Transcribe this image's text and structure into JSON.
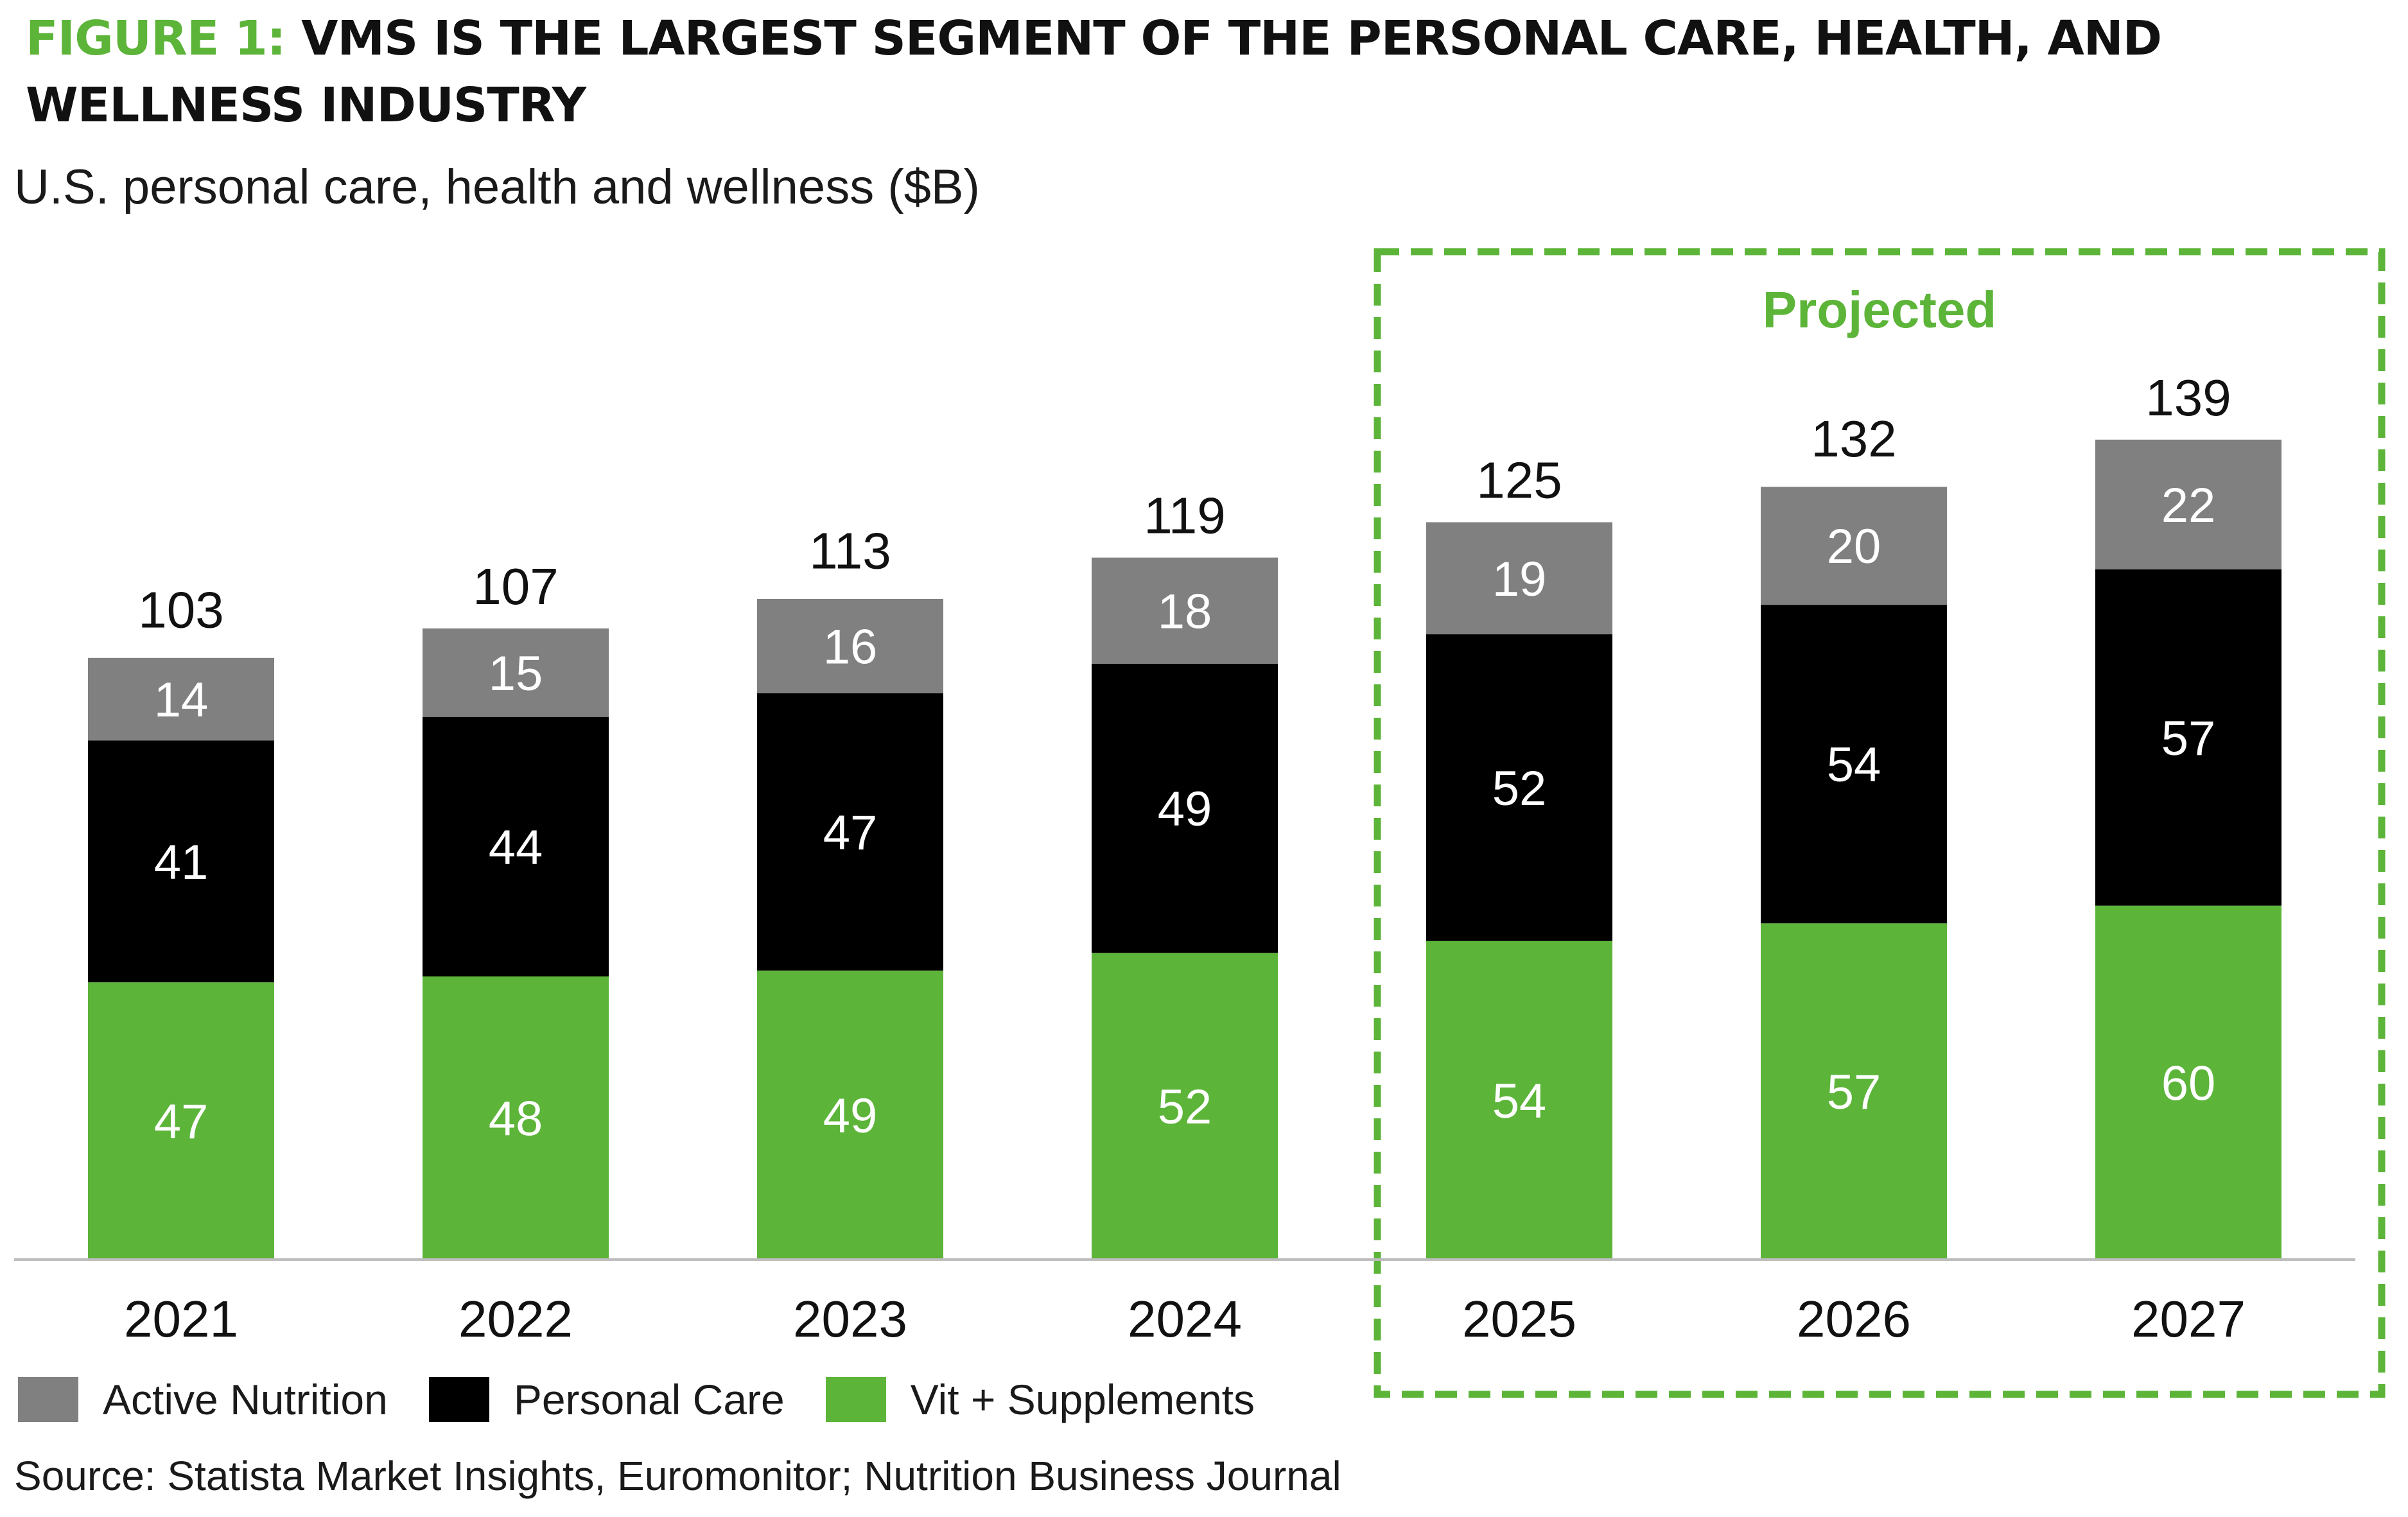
{
  "title": {
    "lead": "FIGURE 1:",
    "text": "VMS IS THE LARGEST SEGMENT OF THE PERSONAL CARE, HEALTH, AND WELLNESS INDUSTRY"
  },
  "source": "Source: Statista Market Insights, Euromonitor; Nutrition Business Journal",
  "chart_data": {
    "type": "bar",
    "stacked": true,
    "subtitle": "U.S. personal care, health and wellness ($B)",
    "categories": [
      "2021",
      "2022",
      "2023",
      "2024",
      "2025",
      "2026",
      "2027"
    ],
    "series": [
      {
        "name": "Vit + Supplements",
        "color": "#5cb439",
        "label_color": "#ffffff",
        "values": [
          47,
          48,
          49,
          52,
          54,
          57,
          60
        ]
      },
      {
        "name": "Personal Care",
        "color": "#000000",
        "label_color": "#ffffff",
        "values": [
          41,
          44,
          47,
          49,
          52,
          54,
          57
        ]
      },
      {
        "name": "Active Nutrition",
        "color": "#808080",
        "label_color": "#ffffff",
        "values": [
          14,
          15,
          16,
          18,
          19,
          20,
          22
        ]
      }
    ],
    "totals": [
      103,
      107,
      113,
      119,
      125,
      132,
      139
    ],
    "legend_order": [
      "Active Nutrition",
      "Personal Care",
      "Vit + Supplements"
    ],
    "projected_label": "Projected",
    "projected_categories": [
      "2025",
      "2026",
      "2027"
    ],
    "projected_color": "#5cb439",
    "ylim": [
      0,
      170
    ],
    "grid": false,
    "legend_position": "bottom-left"
  }
}
